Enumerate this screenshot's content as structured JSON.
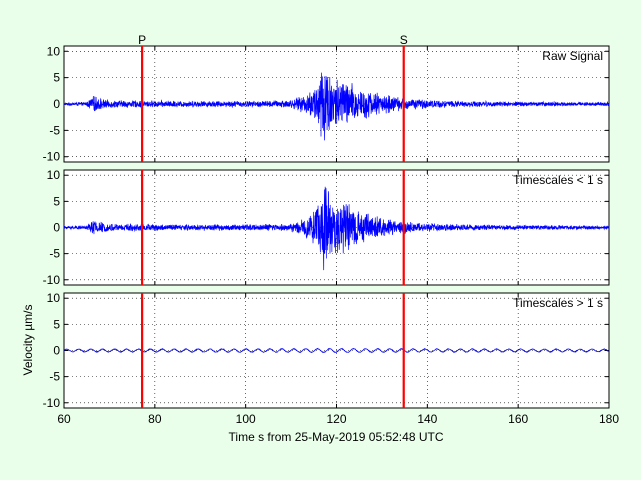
{
  "chart_data": {
    "type": "line",
    "xlabel": "Time s from 25-May-2019 05:52:48 UTC",
    "ylabel": "Velocity µm/s",
    "xlim": [
      60,
      180
    ],
    "xticks": [
      60,
      80,
      100,
      120,
      140,
      160,
      180
    ],
    "grid": true,
    "line_color": "#0000ff",
    "phase_color": "#ff0000",
    "phases": [
      {
        "label": "P",
        "time": 77.2
      },
      {
        "label": "S",
        "time": 134.8
      }
    ],
    "panels": [
      {
        "title": "Raw Signal",
        "ylim": [
          -11,
          11
        ],
        "yticks": [
          10,
          5,
          0,
          -5,
          -10
        ],
        "envelope": {
          "t": [
            60,
            65,
            66,
            67,
            68,
            69,
            70,
            75,
            80,
            90,
            100,
            105,
            110,
            112,
            114,
            115,
            116,
            117,
            117.5,
            118,
            119,
            120,
            122,
            124,
            126,
            128,
            130,
            132,
            134,
            136,
            140,
            145,
            150,
            160,
            170,
            180
          ],
          "amp": [
            0.3,
            0.4,
            1.5,
            1.7,
            1.2,
            0.9,
            0.8,
            0.75,
            0.7,
            0.65,
            0.65,
            0.7,
            0.9,
            1.5,
            2.5,
            3.5,
            6.0,
            9.5,
            10.0,
            8.0,
            6.0,
            5.5,
            5.0,
            4.0,
            3.2,
            2.6,
            2.2,
            1.8,
            1.4,
            1.2,
            0.9,
            0.7,
            0.6,
            0.5,
            0.45,
            0.4
          ]
        }
      },
      {
        "title": "Timescales < 1 s",
        "ylim": [
          -11,
          11
        ],
        "yticks": [
          10,
          5,
          0,
          -5,
          -10
        ],
        "envelope": {
          "t": [
            60,
            65,
            66,
            67,
            68,
            69,
            70,
            75,
            80,
            90,
            100,
            105,
            110,
            112,
            114,
            115,
            116,
            117,
            117.5,
            118,
            119,
            120,
            122,
            124,
            126,
            128,
            130,
            132,
            134,
            136,
            140,
            145,
            150,
            160,
            170,
            180
          ],
          "amp": [
            0.3,
            0.4,
            1.5,
            1.7,
            1.2,
            0.9,
            0.8,
            0.75,
            0.7,
            0.65,
            0.65,
            0.7,
            0.9,
            1.5,
            2.5,
            3.5,
            6.0,
            9.5,
            10.0,
            8.0,
            6.0,
            5.5,
            5.0,
            4.0,
            3.2,
            2.6,
            2.2,
            1.8,
            1.4,
            1.2,
            0.9,
            0.7,
            0.6,
            0.5,
            0.45,
            0.4
          ]
        }
      },
      {
        "title": "Timescales > 1 s",
        "ylim": [
          -11,
          11
        ],
        "yticks": [
          10,
          5,
          0,
          -5,
          -10
        ],
        "envelope": {
          "t": [
            60,
            100,
            120,
            140,
            180
          ],
          "amp": [
            0.25,
            0.3,
            0.35,
            0.3,
            0.25
          ]
        }
      }
    ]
  }
}
